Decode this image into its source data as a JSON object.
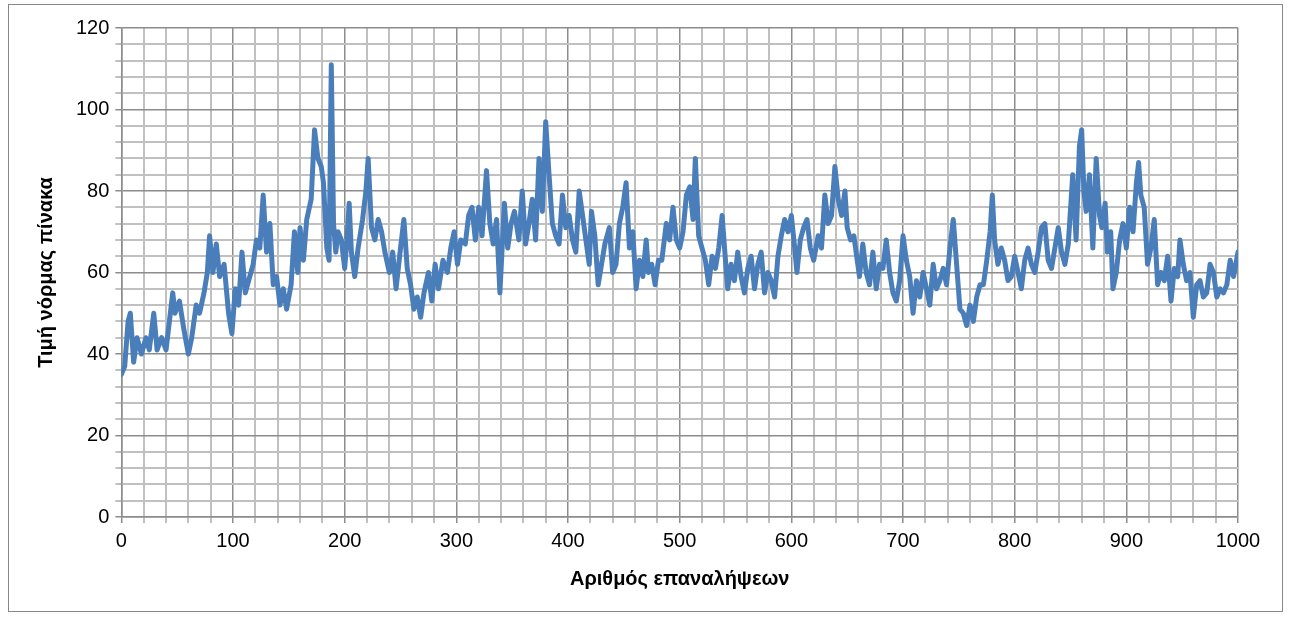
{
  "chart_data": {
    "type": "line",
    "xlabel": "Αριθμός επαναλήψεων",
    "ylabel": "Τιμή νόρμας πίνακα",
    "xlim": [
      0,
      1000
    ],
    "ylim": [
      0,
      120
    ],
    "grid": true,
    "legend": false,
    "marker": "none",
    "line_style": "solid",
    "xticks": [
      0,
      {
        "value": 20,
        "label": null
      },
      {
        "value": 40,
        "label": null
      },
      {
        "value": 60,
        "label": null
      },
      {
        "value": 80,
        "label": null
      },
      100,
      {
        "value": 120,
        "label": null
      },
      {
        "value": 140,
        "label": null
      },
      {
        "value": 160,
        "label": null
      },
      {
        "value": 180,
        "label": null
      },
      200,
      {
        "value": 220,
        "label": null
      },
      {
        "value": 240,
        "label": null
      },
      {
        "value": 260,
        "label": null
      },
      {
        "value": 280,
        "label": null
      },
      300,
      {
        "value": 320,
        "label": null
      },
      {
        "value": 340,
        "label": null
      },
      {
        "value": 360,
        "label": null
      },
      {
        "value": 380,
        "label": null
      },
      400,
      {
        "value": 420,
        "label": null
      },
      {
        "value": 440,
        "label": null
      },
      {
        "value": 460,
        "label": null
      },
      {
        "value": 480,
        "label": null
      },
      500,
      {
        "value": 520,
        "label": null
      },
      {
        "value": 540,
        "label": null
      },
      {
        "value": 560,
        "label": null
      },
      {
        "value": 580,
        "label": null
      },
      600,
      {
        "value": 620,
        "label": null
      },
      {
        "value": 640,
        "label": null
      },
      {
        "value": 660,
        "label": null
      },
      {
        "value": 680,
        "label": null
      },
      700,
      {
        "value": 720,
        "label": null
      },
      {
        "value": 740,
        "label": null
      },
      {
        "value": 760,
        "label": null
      },
      {
        "value": 780,
        "label": null
      },
      800,
      {
        "value": 820,
        "label": null
      },
      {
        "value": 840,
        "label": null
      },
      {
        "value": 860,
        "label": null
      },
      {
        "value": 880,
        "label": null
      },
      900,
      {
        "value": 920,
        "label": null
      },
      {
        "value": 940,
        "label": null
      },
      {
        "value": 960,
        "label": null
      },
      {
        "value": 980,
        "label": null
      },
      1000
    ],
    "yticks": [
      0,
      {
        "value": 4,
        "label": null
      },
      {
        "value": 8,
        "label": null
      },
      {
        "value": 12,
        "label": null
      },
      {
        "value": 16,
        "label": null
      },
      20,
      {
        "value": 24,
        "label": null
      },
      {
        "value": 28,
        "label": null
      },
      {
        "value": 32,
        "label": null
      },
      {
        "value": 36,
        "label": null
      },
      40,
      {
        "value": 44,
        "label": null
      },
      {
        "value": 48,
        "label": null
      },
      {
        "value": 52,
        "label": null
      },
      {
        "value": 56,
        "label": null
      },
      60,
      {
        "value": 64,
        "label": null
      },
      {
        "value": 68,
        "label": null
      },
      {
        "value": 72,
        "label": null
      },
      {
        "value": 76,
        "label": null
      },
      80,
      {
        "value": 84,
        "label": null
      },
      {
        "value": 88,
        "label": null
      },
      {
        "value": 92,
        "label": null
      },
      {
        "value": 96,
        "label": null
      },
      100,
      {
        "value": 104,
        "label": null
      },
      {
        "value": 108,
        "label": null
      },
      {
        "value": 112,
        "label": null
      },
      {
        "value": 116,
        "label": null
      },
      120
    ],
    "series": [
      {
        "color": "#4a7ebb",
        "x": [
          0,
          3,
          6,
          8,
          11,
          14,
          18,
          22,
          25,
          29,
          32,
          36,
          40,
          43,
          46,
          48,
          52,
          56,
          60,
          63,
          67,
          70,
          74,
          77,
          79,
          82,
          85,
          88,
          92,
          96,
          99,
          102,
          105,
          108,
          111,
          114,
          118,
          121,
          124,
          127,
          130,
          133,
          136,
          139,
          142,
          145,
          148,
          152,
          155,
          158,
          160,
          163,
          166,
          170,
          173,
          176,
          179,
          181,
          184,
          186,
          188,
          190,
          192,
          194,
          197,
          200,
          202,
          204,
          206,
          209,
          212,
          216,
          219,
          221,
          224,
          227,
          230,
          233,
          236,
          240,
          243,
          246,
          250,
          253,
          256,
          259,
          262,
          265,
          268,
          271,
          275,
          278,
          281,
          284,
          288,
          292,
          295,
          298,
          301,
          304,
          308,
          311,
          314,
          317,
          320,
          323,
          327,
          330,
          333,
          336,
          339,
          343,
          346,
          349,
          352,
          356,
          359,
          362,
          365,
          368,
          371,
          374,
          377,
          380,
          383,
          386,
          389,
          392,
          395,
          398,
          401,
          404,
          407,
          410,
          413,
          416,
          419,
          421,
          424,
          427,
          430,
          433,
          437,
          440,
          443,
          446,
          449,
          452,
          455,
          458,
          461,
          464,
          467,
          470,
          472,
          475,
          478,
          481,
          484,
          488,
          491,
          494,
          497,
          500,
          503,
          506,
          509,
          512,
          514,
          517,
          520,
          523,
          526,
          529,
          532,
          535,
          538,
          541,
          543,
          546,
          549,
          552,
          555,
          558,
          561,
          564,
          567,
          570,
          573,
          576,
          579,
          582,
          585,
          588,
          591,
          594,
          597,
          600,
          603,
          605,
          608,
          611,
          614,
          617,
          620,
          624,
          627,
          630,
          633,
          636,
          639,
          642,
          645,
          648,
          650,
          653,
          656,
          659,
          661,
          664,
          667,
          670,
          673,
          676,
          679,
          682,
          685,
          688,
          691,
          694,
          697,
          700,
          703,
          706,
          709,
          712,
          715,
          718,
          721,
          724,
          727,
          730,
          733,
          736,
          739,
          742,
          745,
          748,
          751,
          754,
          757,
          760,
          763,
          766,
          769,
          772,
          775,
          778,
          780,
          782,
          785,
          788,
          791,
          794,
          797,
          800,
          803,
          806,
          809,
          812,
          815,
          818,
          821,
          824,
          827,
          830,
          833,
          836,
          839,
          842,
          845,
          848,
          852,
          855,
          858,
          860,
          862,
          864,
          867,
          870,
          873,
          876,
          878,
          881,
          883,
          886,
          888,
          891,
          894,
          897,
          900,
          903,
          906,
          909,
          911,
          913,
          916,
          919,
          922,
          925,
          928,
          931,
          934,
          937,
          940,
          943,
          946,
          948,
          951,
          954,
          957,
          960,
          963,
          966,
          969,
          972,
          975,
          978,
          981,
          984,
          987,
          990,
          993,
          996,
          1000
        ],
        "values": [
          35,
          37,
          48,
          50,
          38,
          44,
          40,
          44,
          41,
          50,
          41,
          44,
          41,
          48,
          55,
          50,
          53,
          46,
          40,
          44,
          52,
          50,
          55,
          60,
          69,
          60,
          67,
          59,
          62,
          50,
          45,
          56,
          52,
          65,
          55,
          58,
          62,
          68,
          66,
          79,
          65,
          72,
          57,
          59,
          52,
          56,
          51,
          57,
          70,
          60,
          71,
          63,
          73,
          78,
          95,
          88,
          86,
          82,
          66,
          63,
          111,
          72,
          65,
          70,
          68,
          61,
          68,
          77,
          65,
          59,
          66,
          73,
          80,
          88,
          71,
          68,
          73,
          70,
          65,
          60,
          65,
          56,
          66,
          73,
          61,
          57,
          51,
          54,
          49,
          55,
          60,
          53,
          62,
          56,
          63,
          60,
          66,
          70,
          62,
          68,
          67,
          74,
          76,
          68,
          76,
          69,
          85,
          72,
          67,
          73,
          55,
          77,
          66,
          72,
          75,
          68,
          80,
          67,
          72,
          78,
          68,
          88,
          75,
          97,
          84,
          72,
          69,
          67,
          79,
          71,
          74,
          68,
          65,
          80,
          74,
          68,
          62,
          75,
          69,
          57,
          62,
          67,
          71,
          60,
          62,
          72,
          76,
          82,
          66,
          70,
          56,
          63,
          59,
          68,
          60,
          62,
          57,
          63,
          63,
          72,
          68,
          76,
          68,
          66,
          70,
          79,
          81,
          73,
          88,
          69,
          66,
          63,
          57,
          64,
          61,
          66,
          74,
          63,
          56,
          62,
          58,
          65,
          59,
          55,
          61,
          64,
          56,
          62,
          65,
          55,
          60,
          58,
          54,
          64,
          69,
          73,
          70,
          74,
          66,
          60,
          68,
          71,
          73,
          66,
          63,
          69,
          66,
          79,
          72,
          74,
          86,
          78,
          74,
          80,
          71,
          68,
          69,
          63,
          59,
          67,
          60,
          57,
          65,
          56,
          62,
          61,
          68,
          60,
          55,
          53,
          58,
          69,
          63,
          59,
          50,
          58,
          54,
          60,
          56,
          52,
          62,
          56,
          58,
          61,
          57,
          66,
          73,
          62,
          51,
          50,
          47,
          52,
          48,
          54,
          57,
          57,
          63,
          70,
          79,
          68,
          62,
          66,
          63,
          58,
          59,
          64,
          60,
          56,
          63,
          66,
          62,
          60,
          65,
          71,
          72,
          63,
          61,
          66,
          71,
          65,
          62,
          67,
          84,
          68,
          91,
          95,
          80,
          75,
          84,
          66,
          88,
          74,
          71,
          77,
          65,
          70,
          56,
          60,
          68,
          72,
          66,
          76,
          70,
          82,
          87,
          79,
          76,
          62,
          66,
          73,
          57,
          60,
          58,
          64,
          53,
          61,
          59,
          68,
          62,
          58,
          60,
          49,
          57,
          58,
          54,
          55,
          62,
          60,
          54,
          56,
          55,
          57,
          63,
          59,
          65
        ]
      }
    ]
  }
}
